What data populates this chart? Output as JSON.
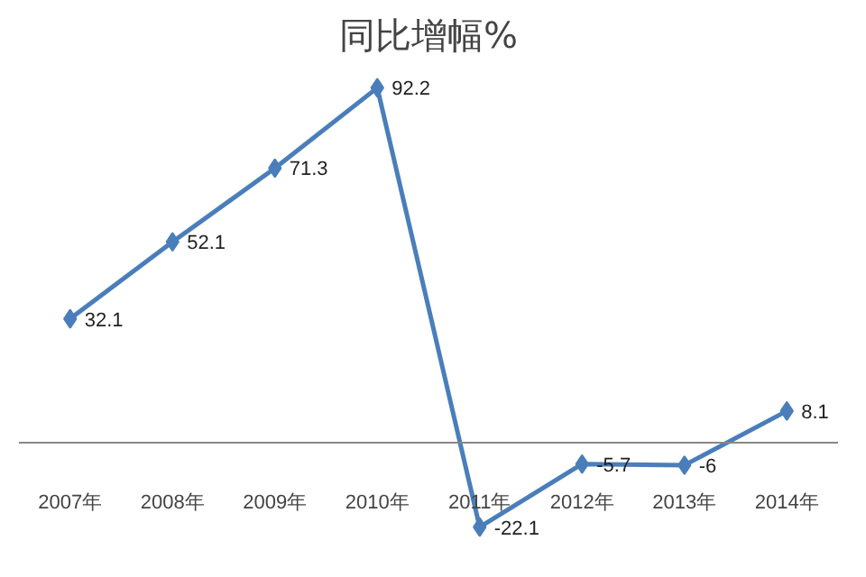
{
  "chart_data": {
    "type": "line",
    "title": "同比增幅%",
    "categories": [
      "2007年",
      "2008年",
      "2009年",
      "2010年",
      "2011年",
      "2012年",
      "2013年",
      "2014年"
    ],
    "series": [
      {
        "color": "#4a7ebb",
        "values": [
          32.1,
          52.1,
          71.3,
          92.2,
          -22.1,
          -5.7,
          -6,
          8.1
        ]
      }
    ],
    "tick_labels": "x",
    "data_labels": true,
    "marker": "diamond",
    "line_style": "solid",
    "grid": false
  }
}
